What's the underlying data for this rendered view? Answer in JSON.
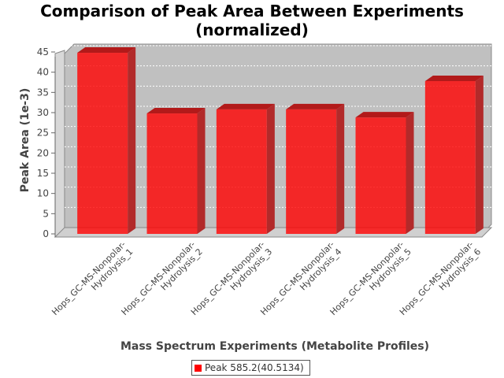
{
  "chart_data": {
    "type": "bar",
    "title_line1": "Comparison of Peak Area Between Experiments",
    "title_line2": "(normalized)",
    "xlabel": "Mass Spectrum Experiments (Metabolite Profiles)",
    "ylabel": "Peak Area (1e-3)",
    "ylim": [
      0,
      45
    ],
    "yticks": [
      0,
      5,
      10,
      15,
      20,
      25,
      30,
      35,
      40,
      45
    ],
    "grid": true,
    "legend_position": "bottom",
    "categories": [
      [
        "Hops_GC-MS-Nonpolar-",
        "Hydrolysis_1"
      ],
      [
        "Hops_GC-MS-Nonpolar-",
        "Hydrolysis_2"
      ],
      [
        "Hops_GC-MS-Nonpolar-",
        "Hydrolysis_3"
      ],
      [
        "Hops_GC-MS-Nonpolar-",
        "Hydrolysis_4"
      ],
      [
        "Hops_GC-MS-Nonpolar-",
        "Hydrolysis_5"
      ],
      [
        "Hops_GC-MS-Nonpolar-",
        "Hydrolysis_6"
      ]
    ],
    "series": [
      {
        "name": "Peak 585.2(40.5134)",
        "values": [
          44.8,
          29.8,
          30.8,
          30.8,
          28.8,
          37.8
        ],
        "color": "#ff0000"
      }
    ]
  }
}
